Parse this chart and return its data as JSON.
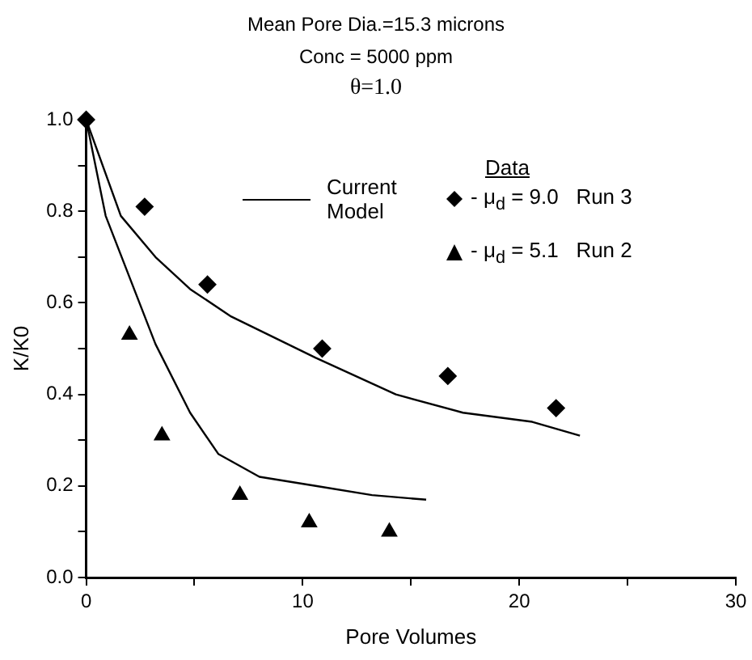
{
  "chart_data": {
    "type": "scatter",
    "title": "Mean Pore Dia.=15.3 microns",
    "subtitle": "Conc = 5000 ppm",
    "annotations": [
      "θ=1.0"
    ],
    "xlabel": "Pore Volumes",
    "ylabel": "K/K0",
    "legend": "top right",
    "legend_title": "Data",
    "grid": false,
    "xlim": [
      0,
      30
    ],
    "xticks": [
      0,
      {
        "value": 5,
        "label": null
      },
      10,
      {
        "value": 15,
        "label": null
      },
      20,
      {
        "value": 25,
        "label": null
      },
      30
    ],
    "ylim": [
      0,
      1
    ],
    "yticks": [
      {
        "value": 0,
        "label": "0.0"
      },
      {
        "value": 0.1,
        "label": null
      },
      0.2,
      {
        "value": 0.3,
        "label": null
      },
      0.4,
      {
        "value": 0.5,
        "label": null
      },
      0.6,
      {
        "value": 0.7,
        "label": null
      },
      0.8,
      {
        "value": 0.9,
        "label": null
      },
      {
        "value": 1,
        "label": "1.0"
      }
    ],
    "series": [
      {
        "type": "line",
        "name": "Current Model",
        "color": "#000000",
        "marker": "none",
        "x": [
          0,
          1.6,
          3.2,
          4.8,
          6.7,
          10.6,
          14.3,
          17.4,
          20.6,
          22.8
        ],
        "values": [
          1,
          0.79,
          0.7,
          0.63,
          0.57,
          0.48,
          0.4,
          0.36,
          0.34,
          0.31
        ]
      },
      {
        "type": "line",
        "color": "#000000",
        "marker": "none",
        "x": [
          0,
          0.9,
          3.2,
          4.8,
          6.1,
          8,
          10.6,
          13.2,
          15.7
        ],
        "values": [
          1,
          0.79,
          0.51,
          0.36,
          0.27,
          0.22,
          0.2,
          0.18,
          0.17
        ]
      },
      {
        "name": "- μ$_{d}$ = 9.0   Run 3",
        "color": "#000000",
        "marker": "diamond",
        "x": [
          0,
          2.7,
          5.6,
          10.9,
          16.7,
          21.7
        ],
        "values": [
          1,
          0.81,
          0.64,
          0.5,
          0.44,
          0.37
        ]
      },
      {
        "name": "- μ$_{d}$ = 5.1   Run 2",
        "color": "#000000",
        "marker": "triangle",
        "x": [
          2,
          3.5,
          7.1,
          10.3,
          14
        ],
        "values": [
          0.53,
          0.31,
          0.18,
          0.12,
          0.1
        ]
      }
    ]
  }
}
